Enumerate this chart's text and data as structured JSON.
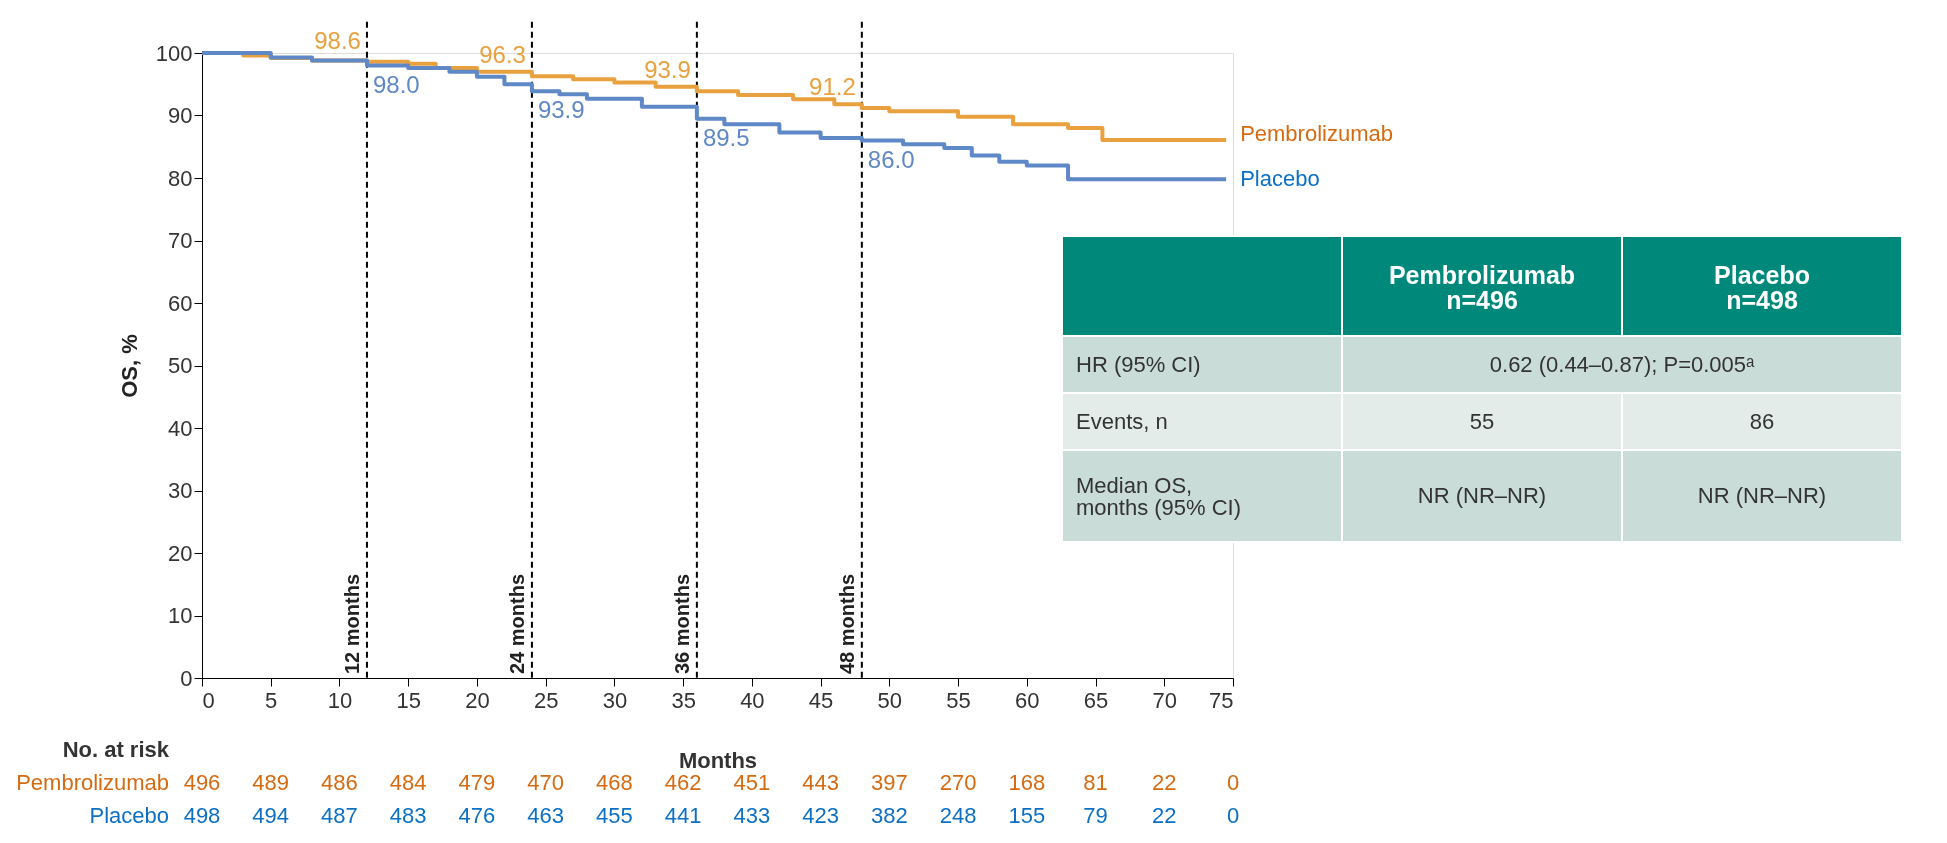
{
  "chart_data": {
    "type": "step",
    "xlabel": "Months",
    "ylabel": "OS, %",
    "xlim": [
      0,
      75
    ],
    "xticks": [
      0,
      5,
      10,
      15,
      20,
      25,
      30,
      35,
      40,
      45,
      50,
      55,
      60,
      65,
      70,
      75
    ],
    "ylim": [
      0,
      100
    ],
    "yticks": [
      0,
      10,
      20,
      30,
      40,
      50,
      60,
      70,
      80,
      90,
      100
    ],
    "grid": false,
    "legend": false,
    "line_style": "solid",
    "marker": "none",
    "series": [
      {
        "name": "Pembrolizumab",
        "color": "#e8a13e",
        "x": [
          0,
          3,
          5,
          8,
          12,
          15,
          17,
          20,
          24,
          27,
          30,
          33,
          36,
          39,
          43,
          46,
          48,
          50,
          55,
          59,
          63,
          65.5,
          74.5
        ],
        "values": [
          100,
          99.6,
          99.2,
          98.8,
          98.6,
          98.3,
          97.6,
          97.0,
          96.3,
          95.8,
          95.3,
          94.6,
          93.9,
          93.3,
          92.6,
          91.8,
          91.2,
          90.7,
          89.8,
          88.6,
          88.0,
          86.1,
          86.1
        ]
      },
      {
        "name": "Placebo",
        "color": "#5f88c6",
        "x": [
          0,
          5,
          8,
          12,
          15,
          18,
          20,
          22,
          24,
          26,
          28,
          32,
          36,
          38,
          42,
          45,
          48,
          51,
          54,
          56,
          58,
          60,
          63,
          74.5
        ],
        "values": [
          100,
          99.3,
          98.8,
          98.0,
          97.6,
          97.0,
          96.2,
          95.0,
          93.9,
          93.4,
          92.7,
          91.4,
          89.5,
          88.6,
          87.3,
          86.4,
          86.0,
          85.4,
          84.8,
          83.6,
          82.6,
          82.0,
          79.8,
          79.8
        ]
      }
    ],
    "ref_lines": [
      {
        "axis": "x",
        "value": 12,
        "label": "12 months",
        "color": "#000000",
        "line_style": "dashed"
      },
      {
        "axis": "x",
        "value": 24,
        "label": "24 months",
        "color": "#000000",
        "line_style": "dashed"
      },
      {
        "axis": "x",
        "value": 36,
        "label": "36 months",
        "color": "#000000",
        "line_style": "dashed"
      },
      {
        "axis": "x",
        "value": 48,
        "label": "48 months",
        "color": "#000000",
        "line_style": "dashed"
      }
    ],
    "annotations": [
      {
        "text": "98.6",
        "x": 12,
        "y": 98.6
      },
      {
        "text": "96.3",
        "x": 24,
        "y": 96.3
      },
      {
        "text": "93.9",
        "x": 36,
        "y": 93.9
      },
      {
        "text": "91.2",
        "x": 48,
        "y": 91.2
      },
      {
        "text": "98.0",
        "x": 12,
        "y": 98.0
      },
      {
        "text": "93.9",
        "x": 24,
        "y": 93.9
      },
      {
        "text": "89.5",
        "x": 36,
        "y": 89.5
      },
      {
        "text": "86.0",
        "x": 48,
        "y": 86.0
      },
      "Pembrolizumab\nn=496",
      "Placebo\nn=498",
      "HR (95% CI)",
      "0.62 (0.44–0.87); P=0.005ᵃ",
      "Events, n",
      "55",
      "86",
      "Median OS,\nmonths (95% CI)",
      "NR (NR–NR)",
      "NR (NR–NR)",
      "No. at risk",
      "Pembrolizumab",
      "496",
      "489",
      "486",
      "484",
      "479",
      "470",
      "468",
      "462",
      "451",
      "443",
      "397",
      "270",
      "168",
      "81",
      "22",
      "0",
      "Placebo",
      "498",
      "494",
      "487",
      "483",
      "476",
      "463",
      "455",
      "441",
      "433",
      "423",
      "382",
      "248",
      "155",
      "79",
      "22",
      "0"
    ]
  }
}
